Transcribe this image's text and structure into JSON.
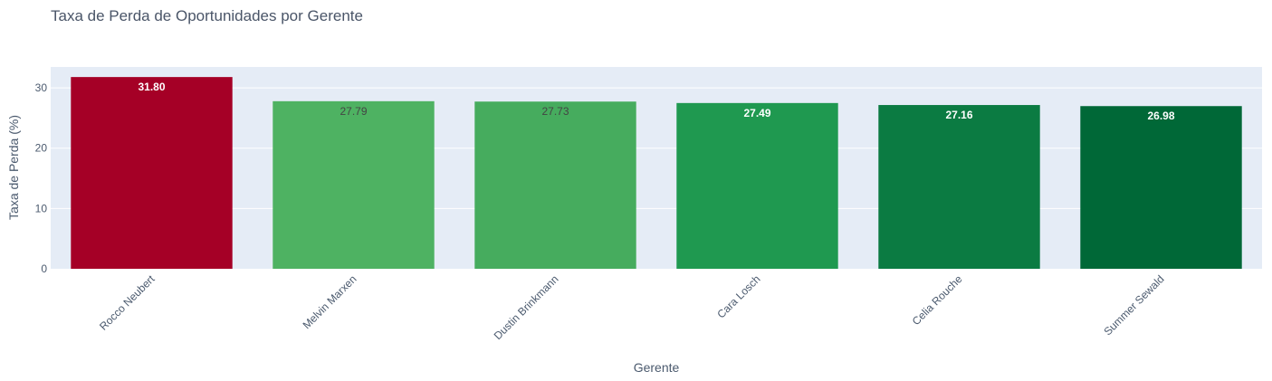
{
  "chart_data": {
    "type": "bar",
    "title": "Taxa de Perda de Oportunidades por Gerente",
    "xlabel": "Gerente",
    "ylabel": "Taxa de Perda (%)",
    "categories": [
      "Rocco Neubert",
      "Melvin Marxen",
      "Dustin Brinkmann",
      "Cara Losch",
      "Celia Rouche",
      "Summer Sewald"
    ],
    "values": [
      31.8,
      27.79,
      27.73,
      27.49,
      27.16,
      26.98
    ],
    "value_labels": [
      "31.80",
      "27.79",
      "27.73",
      "27.49",
      "27.16",
      "26.98"
    ],
    "bar_colors": [
      "#a50026",
      "#4eb262",
      "#46ac5e",
      "#1f9950",
      "#0b7b42",
      "#006837"
    ],
    "label_colors": [
      "#ffffff",
      "#444444",
      "#444444",
      "#ffffff",
      "#ffffff",
      "#ffffff"
    ],
    "y_ticks": [
      "0",
      "10",
      "20",
      "30"
    ],
    "ylim": [
      0,
      33.47
    ],
    "grid": true,
    "plot_background": "#e5ecf6",
    "legend": "none"
  }
}
